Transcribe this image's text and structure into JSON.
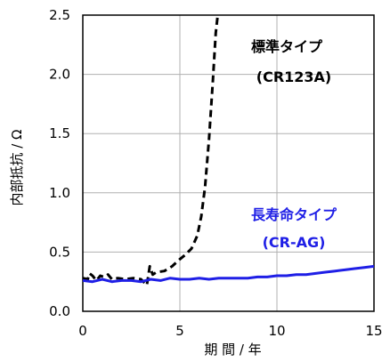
{
  "chart_data": {
    "type": "line",
    "xlabel": "期 間 / 年",
    "ylabel": "内部抵抗 / Ω",
    "xlim": [
      0,
      15
    ],
    "ylim": [
      0,
      2.5
    ],
    "grid": true,
    "x_ticks": [
      {
        "value": 0,
        "label": "0"
      },
      {
        "value": 5,
        "label": "5"
      },
      {
        "value": 10,
        "label": "10"
      },
      {
        "value": 15,
        "label": "15"
      }
    ],
    "y_ticks": [
      {
        "value": 0,
        "label": "0.0"
      },
      {
        "value": 0.5,
        "label": "0.5"
      },
      {
        "value": 1.0,
        "label": "1.0"
      },
      {
        "value": 1.5,
        "label": "1.5"
      },
      {
        "value": 2.0,
        "label": "2.0"
      },
      {
        "value": 2.5,
        "label": "2.5"
      }
    ],
    "series": [
      {
        "name": "標準タイプ (CR123A)",
        "color": "#000000",
        "style": "dashed",
        "points": [
          [
            0.0,
            0.28
          ],
          [
            0.25,
            0.27
          ],
          [
            0.35,
            0.32
          ],
          [
            0.5,
            0.3
          ],
          [
            0.7,
            0.26
          ],
          [
            0.9,
            0.3
          ],
          [
            1.1,
            0.29
          ],
          [
            1.3,
            0.31
          ],
          [
            1.5,
            0.27
          ],
          [
            1.8,
            0.28
          ],
          [
            2.2,
            0.27
          ],
          [
            2.6,
            0.28
          ],
          [
            3.0,
            0.27
          ],
          [
            3.3,
            0.22
          ],
          [
            3.45,
            0.38
          ],
          [
            3.6,
            0.31
          ],
          [
            3.8,
            0.33
          ],
          [
            4.2,
            0.34
          ],
          [
            4.6,
            0.38
          ],
          [
            5.0,
            0.44
          ],
          [
            5.3,
            0.48
          ],
          [
            5.6,
            0.53
          ],
          [
            5.9,
            0.64
          ],
          [
            6.1,
            0.8
          ],
          [
            6.3,
            1.05
          ],
          [
            6.5,
            1.45
          ],
          [
            6.7,
            1.95
          ],
          [
            6.85,
            2.35
          ],
          [
            6.95,
            2.5
          ]
        ]
      },
      {
        "name": "長寿命タイプ (CR-AG)",
        "color": "#1f1fe6",
        "style": "solid",
        "points": [
          [
            0.0,
            0.26
          ],
          [
            0.5,
            0.25
          ],
          [
            1.0,
            0.27
          ],
          [
            1.5,
            0.25
          ],
          [
            2.0,
            0.26
          ],
          [
            2.5,
            0.26
          ],
          [
            3.0,
            0.25
          ],
          [
            3.5,
            0.27
          ],
          [
            4.0,
            0.26
          ],
          [
            4.5,
            0.28
          ],
          [
            5.0,
            0.27
          ],
          [
            5.5,
            0.27
          ],
          [
            6.0,
            0.28
          ],
          [
            6.5,
            0.27
          ],
          [
            7.0,
            0.28
          ],
          [
            7.5,
            0.28
          ],
          [
            8.0,
            0.28
          ],
          [
            8.5,
            0.28
          ],
          [
            9.0,
            0.29
          ],
          [
            9.5,
            0.29
          ],
          [
            10.0,
            0.3
          ],
          [
            10.5,
            0.3
          ],
          [
            11.0,
            0.31
          ],
          [
            11.5,
            0.31
          ],
          [
            12.0,
            0.32
          ],
          [
            12.5,
            0.33
          ],
          [
            13.0,
            0.34
          ],
          [
            13.5,
            0.35
          ],
          [
            14.0,
            0.36
          ],
          [
            14.5,
            0.37
          ],
          [
            15.0,
            0.38
          ]
        ]
      }
    ],
    "annotations": [
      {
        "id": "std-line-1",
        "text": "標準タイプ",
        "color": "#000000"
      },
      {
        "id": "std-line-2",
        "text": "(CR123A)",
        "color": "#000000"
      },
      {
        "id": "lng-line-1",
        "text": "長寿命タイプ",
        "color": "#1f1fe6"
      },
      {
        "id": "lng-line-2",
        "text": "(CR-AG)",
        "color": "#1f1fe6"
      }
    ]
  }
}
